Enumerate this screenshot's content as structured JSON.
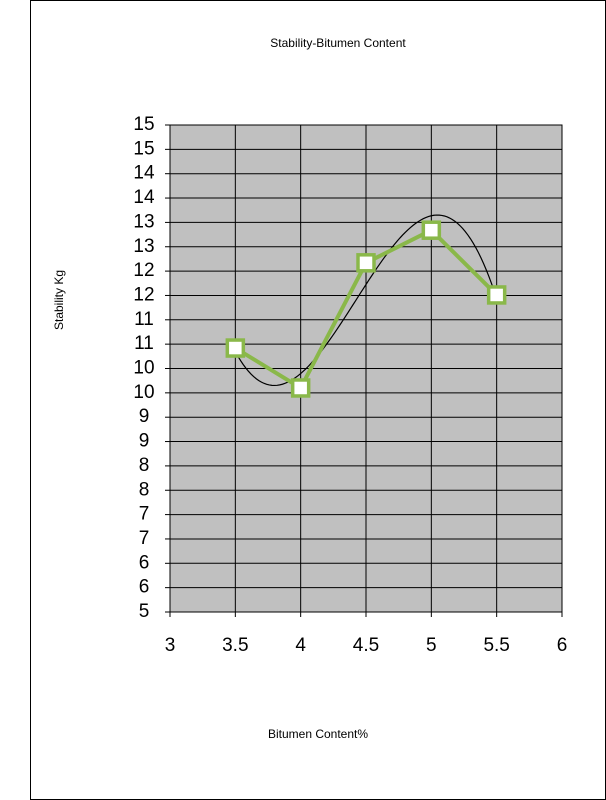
{
  "chart_data": {
    "type": "line",
    "title": "Stability-Bitumen Content",
    "x_label": "Bitumen Content%",
    "y_label": "Stability Kg",
    "x": [
      3.5,
      4,
      4.5,
      5,
      5.5
    ],
    "series": [
      {
        "name": "Stability",
        "color": "#8ab84a",
        "values": [
          10.42,
          9.6,
          12.17,
          12.84,
          11.51
        ]
      }
    ],
    "trendline": {
      "type": "polynomial",
      "order": 3,
      "color": "#000000"
    },
    "xlim": [
      3,
      6
    ],
    "xticks": [
      3,
      3.5,
      4,
      4.5,
      5,
      5.5,
      6
    ],
    "ylim": [
      5,
      15
    ],
    "yticks": [
      5,
      {
        "value": 5.5,
        "label": "6"
      },
      6,
      {
        "value": 6.5,
        "label": "7"
      },
      7,
      {
        "value": 7.5,
        "label": "8"
      },
      8,
      {
        "value": 8.5,
        "label": "9"
      },
      9,
      {
        "value": 9.5,
        "label": "10"
      },
      10,
      {
        "value": 10.5,
        "label": "11"
      },
      11,
      {
        "value": 11.5,
        "label": "12"
      },
      12,
      {
        "value": 12.5,
        "label": "13"
      },
      13,
      {
        "value": 13.5,
        "label": "14"
      },
      14,
      {
        "value": 14.5,
        "label": "15"
      },
      15
    ],
    "grid": true,
    "plot_background": "#c0c0c0"
  }
}
